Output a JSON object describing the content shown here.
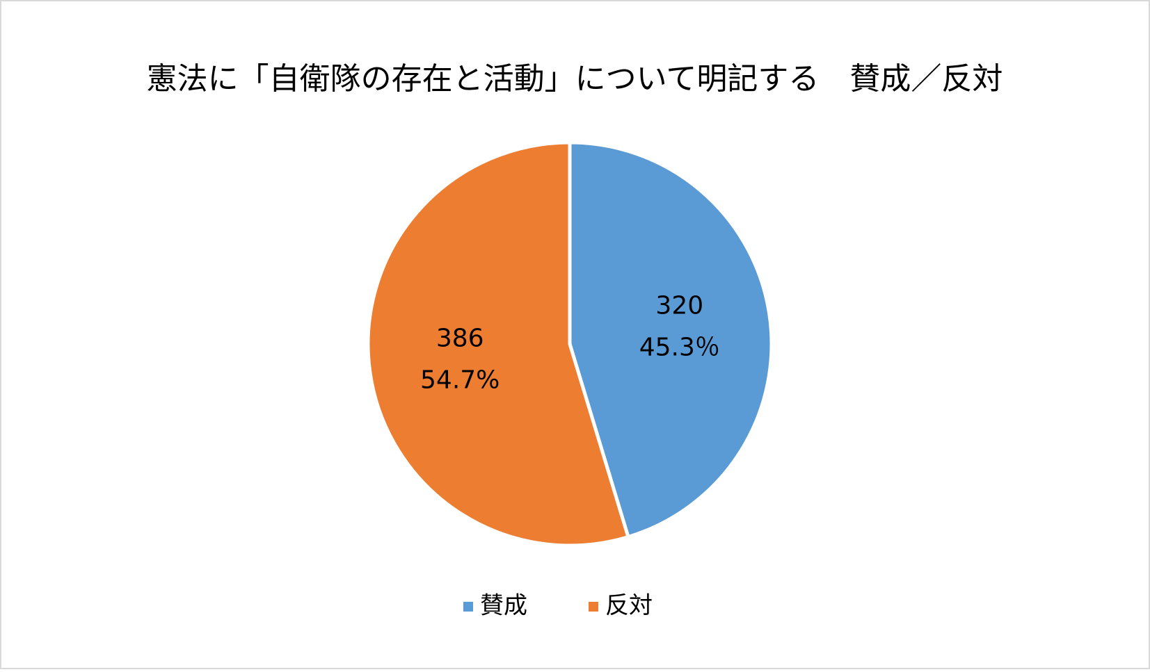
{
  "chart_data": {
    "type": "pie",
    "title": "憲法に「自衛隊の存在と活動」について明記する　賛成／反対",
    "categories": [
      "賛成",
      "反対"
    ],
    "values": [
      320,
      386
    ],
    "percent_labels": [
      "45.3％",
      "54.7%"
    ],
    "colors": [
      "#5b9bd5",
      "#ed7d31"
    ],
    "legend": "bottom"
  }
}
